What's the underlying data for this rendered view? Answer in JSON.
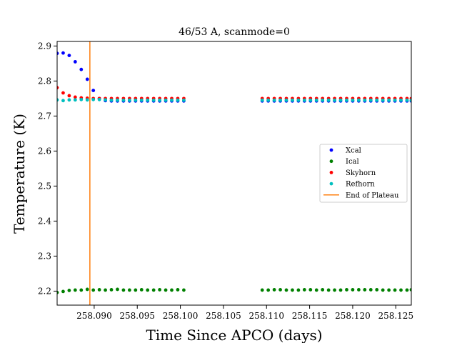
{
  "chart_data": {
    "type": "scatter",
    "title": "46/53 A, scanmode=0",
    "xlabel": "Time Since APCO (days)",
    "ylabel": "Temperature (K)",
    "xlim": [
      258.0857,
      258.1268
    ],
    "ylim": [
      2.16,
      2.913
    ],
    "x_ticks": [
      258.09,
      258.095,
      258.1,
      258.105,
      258.11,
      258.115,
      258.12,
      258.125
    ],
    "x_tick_labels": [
      "258.090",
      "258.095",
      "258.100",
      "258.105",
      "258.110",
      "258.115",
      "258.120",
      "258.125"
    ],
    "y_ticks": [
      2.2,
      2.3,
      2.4,
      2.5,
      2.6,
      2.7,
      2.8,
      2.9
    ],
    "y_tick_labels": [
      "2.2",
      "2.3",
      "2.4",
      "2.5",
      "2.6",
      "2.7",
      "2.8",
      "2.9"
    ],
    "grid": false,
    "legend_position": "center-right",
    "x": [
      258.0857,
      258.0864,
      258.0871,
      258.0878,
      258.0885,
      258.0892,
      258.0899,
      258.0906,
      258.0913,
      258.092,
      258.0927,
      258.0934,
      258.0941,
      258.0948,
      258.0955,
      258.0962,
      258.0969,
      258.0976,
      258.0983,
      258.099,
      258.0997,
      258.1004,
      258.1095,
      258.1102,
      258.1109,
      258.1116,
      258.1123,
      258.113,
      258.1137,
      258.1144,
      258.1151,
      258.1158,
      258.1165,
      258.1172,
      258.1179,
      258.1186,
      258.1193,
      258.12,
      258.1207,
      258.1214,
      258.1221,
      258.1228,
      258.1235,
      258.1242,
      258.1249,
      258.1256,
      258.1263,
      258.1268
    ],
    "series": [
      {
        "name": "Xcal",
        "color": "#0000ff",
        "values": [
          2.879,
          2.88,
          2.873,
          2.855,
          2.833,
          2.805,
          2.773,
          2.75,
          2.744,
          2.743,
          2.743,
          2.743,
          2.743,
          2.743,
          2.743,
          2.743,
          2.743,
          2.743,
          2.743,
          2.743,
          2.743,
          2.743,
          2.743,
          2.743,
          2.743,
          2.743,
          2.743,
          2.743,
          2.743,
          2.743,
          2.743,
          2.743,
          2.743,
          2.743,
          2.743,
          2.743,
          2.743,
          2.743,
          2.743,
          2.743,
          2.743,
          2.743,
          2.743,
          2.743,
          2.743,
          2.743,
          2.743,
          2.743
        ]
      },
      {
        "name": "Ical",
        "color": "#008000",
        "values": [
          2.196,
          2.199,
          2.202,
          2.203,
          2.203,
          2.205,
          2.203,
          2.204,
          2.203,
          2.204,
          2.205,
          2.203,
          2.203,
          2.203,
          2.204,
          2.203,
          2.203,
          2.204,
          2.203,
          2.203,
          2.204,
          2.203,
          2.203,
          2.203,
          2.204,
          2.204,
          2.203,
          2.203,
          2.203,
          2.204,
          2.204,
          2.203,
          2.204,
          2.203,
          2.203,
          2.203,
          2.204,
          2.204,
          2.204,
          2.204,
          2.204,
          2.204,
          2.203,
          2.203,
          2.203,
          2.203,
          2.203,
          2.204
        ]
      },
      {
        "name": "Skyhorn",
        "color": "#ff0000",
        "values": [
          2.781,
          2.766,
          2.758,
          2.754,
          2.752,
          2.751,
          2.75,
          2.75,
          2.75,
          2.75,
          2.75,
          2.75,
          2.75,
          2.75,
          2.75,
          2.75,
          2.75,
          2.75,
          2.75,
          2.75,
          2.75,
          2.75,
          2.75,
          2.75,
          2.75,
          2.75,
          2.75,
          2.75,
          2.75,
          2.75,
          2.75,
          2.75,
          2.75,
          2.75,
          2.75,
          2.75,
          2.75,
          2.75,
          2.75,
          2.75,
          2.75,
          2.75,
          2.75,
          2.75,
          2.75,
          2.75,
          2.75,
          2.75
        ]
      },
      {
        "name": "Refhorn",
        "color": "#00bfbf",
        "values": [
          2.746,
          2.744,
          2.746,
          2.746,
          2.747,
          2.746,
          2.747,
          2.747,
          2.746,
          2.745,
          2.745,
          2.745,
          2.745,
          2.745,
          2.745,
          2.745,
          2.745,
          2.745,
          2.745,
          2.745,
          2.745,
          2.745,
          2.745,
          2.745,
          2.745,
          2.745,
          2.745,
          2.745,
          2.745,
          2.745,
          2.745,
          2.745,
          2.745,
          2.745,
          2.745,
          2.745,
          2.745,
          2.745,
          2.745,
          2.745,
          2.745,
          2.745,
          2.745,
          2.745,
          2.745,
          2.745,
          2.745,
          2.745
        ]
      }
    ],
    "vline": {
      "name": "End of Plateau",
      "x": 258.0895,
      "color": "#ff7f0e"
    }
  }
}
